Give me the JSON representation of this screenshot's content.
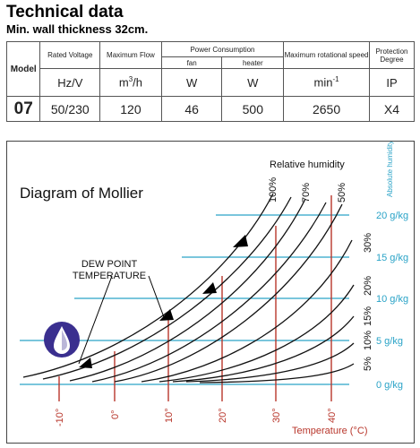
{
  "header": {
    "title": "Technical data",
    "subtitle": "Min. wall thickness 32cm."
  },
  "table": {
    "model_label": "Model",
    "col_rated_voltage": "Rated Voltage",
    "col_max_flow": "Maximum Flow",
    "col_power": "Power Consumption",
    "col_power_fan": "fan",
    "col_power_heater": "heater",
    "col_max_speed": "Maximum rotational speed",
    "col_protection": "Protection Degree",
    "unit_voltage": "Hz/V",
    "unit_flow_base": "m",
    "unit_flow_exp": "3",
    "unit_flow_rest": "/h",
    "unit_fan": "W",
    "unit_heater": "W",
    "unit_speed_base": "min",
    "unit_speed_exp": "-1",
    "unit_protection": "IP",
    "row": {
      "model": "07",
      "voltage": "50/230",
      "flow": "120",
      "fan": "46",
      "heater": "500",
      "speed": "2650",
      "protection": "X4"
    }
  },
  "diagram": {
    "title": "Diagram of Mollier",
    "relative_humidity_label": "Relative humidity",
    "absolute_humidity_label": "Absolute humidity",
    "dew_point_label_1": "DEW POINT",
    "dew_point_label_2": "TEMPERATURE",
    "temperature_axis_label": "Temperature (°C)",
    "rh_labels": [
      "100%",
      "70%",
      "50%"
    ],
    "rh_side_labels": [
      "30%",
      "20%",
      "15%",
      "10%",
      "5%"
    ],
    "abs_humidity_labels": [
      "20 g/kg",
      "15 g/kg",
      "10 g/kg",
      "5 g/kg",
      "0 g/kg"
    ],
    "temperature_ticks": [
      "-10°",
      "0°",
      "10°",
      "20°",
      "30°",
      "40°"
    ],
    "colors": {
      "blue": "#2aa3c7",
      "red": "#b8362b",
      "icon": "#3a2f8f"
    },
    "icon": "water-drop-icon"
  }
}
